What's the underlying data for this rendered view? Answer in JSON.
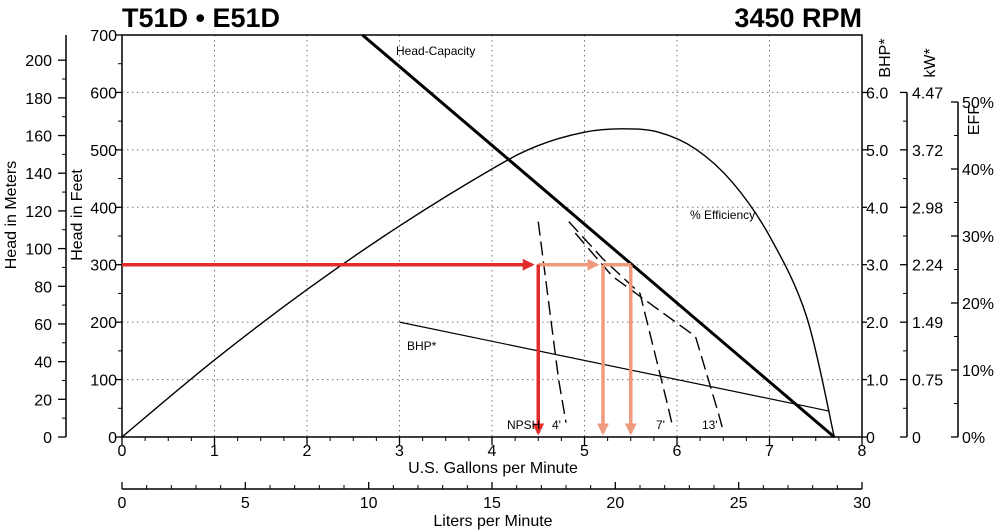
{
  "chart_data": {
    "type": "line",
    "title_left": "T51D • E51D",
    "title_right": "3450 RPM",
    "x_axis": {
      "label": "U.S. Gallons per Minute",
      "range": [
        0,
        8
      ],
      "ticks": [
        "0",
        "1",
        "2",
        "3",
        "4",
        "5",
        "6",
        "7",
        "8"
      ]
    },
    "x2_axis": {
      "label": "Liters per Minute",
      "range": [
        0,
        30
      ],
      "ticks": [
        "0",
        "5",
        "10",
        "15",
        "20",
        "25",
        "30"
      ]
    },
    "y_axis_feet": {
      "label": "Head in Feet",
      "range": [
        0,
        700
      ],
      "ticks": [
        "0",
        "100",
        "200",
        "300",
        "400",
        "500",
        "600",
        "700"
      ]
    },
    "y_axis_meters": {
      "label": "Head in Meters",
      "ticks": [
        "0",
        "20",
        "40",
        "60",
        "80",
        "100",
        "120",
        "140",
        "160",
        "180",
        "200"
      ]
    },
    "y_axis_bhp": {
      "label": "BHP*",
      "range": [
        0,
        7
      ],
      "ticks": [
        "0",
        "1.0",
        "2.0",
        "3.0",
        "4.0",
        "5.0",
        "6.0"
      ]
    },
    "y_axis_kw": {
      "label": "kW*",
      "ticks": [
        "0",
        "0.75",
        "1.49",
        "2.24",
        "2.98",
        "3.72",
        "4.47"
      ]
    },
    "y_axis_eff": {
      "label": "EFF",
      "ticks": [
        "0%",
        "10%",
        "20%",
        "30%",
        "40%",
        "50%"
      ]
    },
    "annotations": {
      "head_capacity": "Head-Capacity",
      "efficiency": "% Efficiency",
      "bhp": "BHP*",
      "npsh": "NPSH",
      "npsh_4": "4'",
      "npsh_7": "7'",
      "npsh_13": "13'"
    },
    "series": [
      {
        "name": "Head-Capacity",
        "unit": "ft",
        "x": [
          2.6,
          7.7
        ],
        "y": [
          700,
          0
        ]
      },
      {
        "name": "% Efficiency",
        "unit": "%",
        "x": [
          0,
          1,
          2,
          3,
          4,
          4.5,
          5,
          5.4,
          5.8,
          6.2,
          6.6,
          7,
          7.4,
          7.7
        ],
        "y": [
          0,
          11.5,
          22,
          31.5,
          40,
          43.5,
          45.5,
          46,
          45.5,
          43,
          38,
          30,
          18,
          0
        ]
      },
      {
        "name": "BHP*",
        "unit": "hp",
        "x": [
          3.0,
          7.65
        ],
        "y": [
          2.0,
          0.45
        ]
      },
      {
        "name": "NPSH 4'",
        "unit": "ft",
        "x": [
          4.5,
          4.72,
          4.8
        ],
        "y": [
          375,
          100,
          25
        ]
      },
      {
        "name": "NPSH 7'",
        "unit": "ft",
        "x": [
          4.83,
          5.2,
          5.6,
          5.9,
          5.95
        ],
        "y": [
          375,
          310,
          250,
          55,
          20
        ]
      },
      {
        "name": "NPSH 13'",
        "unit": "ft",
        "x": [
          4.9,
          5.3,
          6.2,
          6.45,
          6.5
        ],
        "y": [
          355,
          280,
          175,
          40,
          10
        ]
      }
    ],
    "operating_points": [
      {
        "gpm": 4.5,
        "head_ft": 300,
        "color": "#e32b2b"
      },
      {
        "gpm": 5.2,
        "head_ft": 300,
        "color": "#f09a7d"
      },
      {
        "gpm": 5.5,
        "head_ft": 300,
        "color": "#f09a7d"
      }
    ],
    "grid": true
  }
}
